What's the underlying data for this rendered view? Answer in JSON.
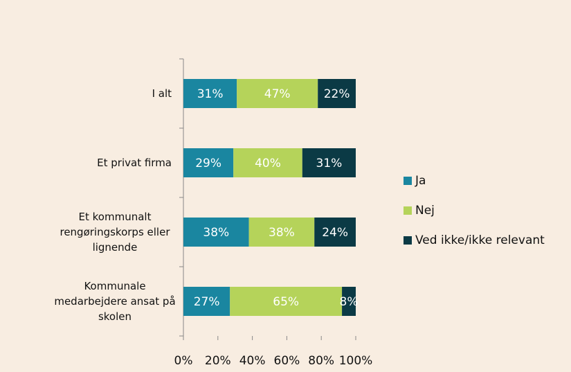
{
  "chart_data": {
    "type": "stacked-barh",
    "categories": [
      "I alt",
      "Et privat firma",
      "Et kommunalt rengøringskorps eller lignende",
      "Kommunale medarbejdere ansat på skolen"
    ],
    "series": [
      {
        "name": "Ja",
        "color": "#1a86a0",
        "values": [
          31,
          29,
          38,
          27
        ],
        "value_labels": [
          "31%",
          "29%",
          "38%",
          "27%"
        ]
      },
      {
        "name": "Nej",
        "color": "#b5d35a",
        "values": [
          47,
          40,
          38,
          65
        ],
        "value_labels": [
          "47%",
          "40%",
          "38%",
          "65%"
        ]
      },
      {
        "name": "Ved ikke/ikke relevant",
        "color": "#0b3a45",
        "values": [
          22,
          31,
          24,
          8
        ],
        "value_labels": [
          "22%",
          "31%",
          "24%",
          "8%"
        ]
      }
    ],
    "xlim": [
      0,
      100
    ],
    "xticks": [
      {
        "value": 0,
        "label": "0%"
      },
      {
        "value": 20,
        "label": "20%"
      },
      {
        "value": 40,
        "label": "40%"
      },
      {
        "value": 60,
        "label": "60%"
      },
      {
        "value": 80,
        "label": "80%"
      },
      {
        "value": 100,
        "label": "100%"
      }
    ],
    "legend": "right"
  }
}
